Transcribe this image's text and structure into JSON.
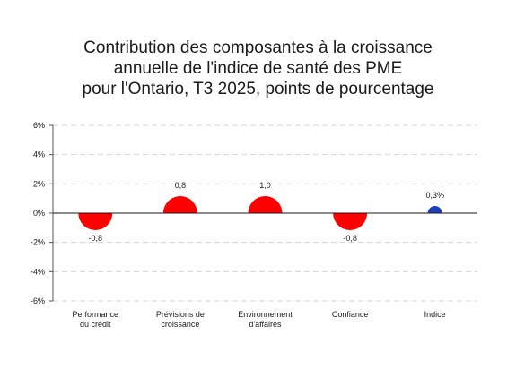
{
  "chart_data": {
    "type": "bubble",
    "title_lines": [
      "Contribution des composantes à la croissance",
      "annuelle de l'indice de santé des PME",
      "pour l'Ontario, T3 2025, points de pourcentage"
    ],
    "categories": [
      [
        "Performance",
        "du crédit"
      ],
      [
        "Prévisions de",
        "croissance"
      ],
      [
        "Environnement",
        "d'affaires"
      ],
      [
        "Confiance"
      ],
      [
        "Indice"
      ]
    ],
    "values": [
      -0.8,
      0.8,
      1.0,
      -0.8,
      0.3
    ],
    "value_labels": [
      "-0,8",
      "0,8",
      "1,0",
      "-0,8",
      "0,3%"
    ],
    "point_colors": [
      "#ff0000",
      "#ff0000",
      "#ff0000",
      "#ff0000",
      "#1f3fbf"
    ],
    "yticks": [
      "6%",
      "4%",
      "2%",
      "0%",
      "-2%",
      "-4%",
      "-6%"
    ],
    "ytick_values": [
      6,
      4,
      2,
      0,
      -2,
      -4,
      -6
    ],
    "ylim": [
      -6,
      6
    ],
    "grid": true,
    "legend": false
  }
}
